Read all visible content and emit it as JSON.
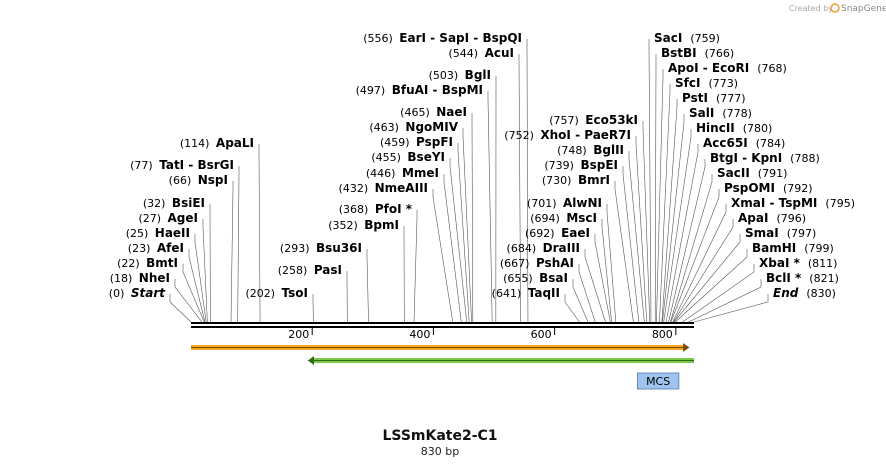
{
  "credit": {
    "text": "Created by",
    "brand": "SnapGene"
  },
  "plasmid": {
    "name": "LSSmKate2-C1",
    "length_label": "830 bp",
    "length": 830
  },
  "axis": {
    "ticks": [
      {
        "value": 200,
        "label": "200"
      },
      {
        "value": 400,
        "label": "400"
      },
      {
        "value": 600,
        "label": "600"
      },
      {
        "value": 800,
        "label": "800"
      }
    ]
  },
  "features": {
    "orange": {
      "start": 0,
      "end": 822,
      "color": "#f5a623",
      "direction": "forward"
    },
    "green": {
      "start": 193,
      "end": 830,
      "color": "#7cc84a",
      "direction": "reverse"
    },
    "mcs": {
      "label": "MCS",
      "start": 740,
      "end": 805,
      "color": "#9fc4f0"
    }
  },
  "left_labels": [
    {
      "pos": "(0)",
      "names": [
        "Start"
      ],
      "site": 0,
      "italic": true
    },
    {
      "pos": "(18)",
      "names": [
        "NheI"
      ],
      "site": 18
    },
    {
      "pos": "(22)",
      "names": [
        "BmtI"
      ],
      "site": 22
    },
    {
      "pos": "(23)",
      "names": [
        "AfeI"
      ],
      "site": 23
    },
    {
      "pos": "(25)",
      "names": [
        "HaeII"
      ],
      "site": 25
    },
    {
      "pos": "(27)",
      "names": [
        "AgeI"
      ],
      "site": 27
    },
    {
      "pos": "(32)",
      "names": [
        "BsiEI"
      ],
      "site": 32
    },
    {
      "pos": "(66)",
      "names": [
        "NspI"
      ],
      "site": 66
    },
    {
      "pos": "(77)",
      "names": [
        "TatI",
        "BsrGI"
      ],
      "site": 77
    },
    {
      "pos": "(114)",
      "names": [
        "ApaLI"
      ],
      "site": 114
    },
    {
      "pos": "(202)",
      "names": [
        "TsoI"
      ],
      "site": 202
    },
    {
      "pos": "(258)",
      "names": [
        "PasI"
      ],
      "site": 258
    },
    {
      "pos": "(293)",
      "names": [
        "Bsu36I"
      ],
      "site": 293
    },
    {
      "pos": "(352)",
      "names": [
        "BpmI"
      ],
      "site": 352
    },
    {
      "pos": "(368)",
      "names": [
        "PfoI *"
      ],
      "site": 368
    },
    {
      "pos": "(432)",
      "names": [
        "NmeAIII"
      ],
      "site": 432
    },
    {
      "pos": "(446)",
      "names": [
        "MmeI"
      ],
      "site": 446
    },
    {
      "pos": "(455)",
      "names": [
        "BseYI"
      ],
      "site": 455
    },
    {
      "pos": "(459)",
      "names": [
        "PspFI"
      ],
      "site": 459
    },
    {
      "pos": "(463)",
      "names": [
        "NgoMIV"
      ],
      "site": 463
    },
    {
      "pos": "(465)",
      "names": [
        "NaeI"
      ],
      "site": 465
    },
    {
      "pos": "(497)",
      "names": [
        "BfuAI",
        "BspMI"
      ],
      "site": 497
    },
    {
      "pos": "(503)",
      "names": [
        "BglI"
      ],
      "site": 503
    },
    {
      "pos": "(544)",
      "names": [
        "AcuI"
      ],
      "site": 544
    },
    {
      "pos": "(556)",
      "names": [
        "EarI",
        "SapI",
        "BspQI"
      ],
      "site": 556
    },
    {
      "pos": "(641)",
      "names": [
        "TaqII"
      ],
      "site": 641
    },
    {
      "pos": "(655)",
      "names": [
        "BsaI"
      ],
      "site": 655
    },
    {
      "pos": "(667)",
      "names": [
        "PshAI"
      ],
      "site": 667
    },
    {
      "pos": "(684)",
      "names": [
        "DraIII"
      ],
      "site": 684
    },
    {
      "pos": "(692)",
      "names": [
        "EaeI"
      ],
      "site": 692
    },
    {
      "pos": "(694)",
      "names": [
        "MscI"
      ],
      "site": 694
    },
    {
      "pos": "(701)",
      "names": [
        "AlwNI"
      ],
      "site": 701
    },
    {
      "pos": "(730)",
      "names": [
        "BmrI"
      ],
      "site": 730
    },
    {
      "pos": "(739)",
      "names": [
        "BspEI"
      ],
      "site": 739
    },
    {
      "pos": "(748)",
      "names": [
        "BglII"
      ],
      "site": 748
    },
    {
      "pos": "(752)",
      "names": [
        "XhoI",
        "PaeR7I"
      ],
      "site": 752
    },
    {
      "pos": "(757)",
      "names": [
        "Eco53kI"
      ],
      "site": 757
    }
  ],
  "right_labels": [
    {
      "names": [
        "SacI"
      ],
      "pos": "(759)",
      "site": 759
    },
    {
      "names": [
        "BstBI"
      ],
      "pos": "(766)",
      "site": 766
    },
    {
      "names": [
        "ApoI",
        "EcoRI"
      ],
      "pos": "(768)",
      "site": 768
    },
    {
      "names": [
        "SfcI"
      ],
      "pos": "(773)",
      "site": 773
    },
    {
      "names": [
        "PstI"
      ],
      "pos": "(777)",
      "site": 777
    },
    {
      "names": [
        "SalI"
      ],
      "pos": "(778)",
      "site": 778
    },
    {
      "names": [
        "HincII"
      ],
      "pos": "(780)",
      "site": 780
    },
    {
      "names": [
        "Acc65I"
      ],
      "pos": "(784)",
      "site": 784
    },
    {
      "names": [
        "BtgI",
        "KpnI"
      ],
      "pos": "(788)",
      "site": 788
    },
    {
      "names": [
        "SacII"
      ],
      "pos": "(791)",
      "site": 791
    },
    {
      "names": [
        "PspOMI"
      ],
      "pos": "(792)",
      "site": 792
    },
    {
      "names": [
        "XmaI",
        "TspMI"
      ],
      "pos": "(795)",
      "site": 795
    },
    {
      "names": [
        "ApaI"
      ],
      "pos": "(796)",
      "site": 796
    },
    {
      "names": [
        "SmaI"
      ],
      "pos": "(797)",
      "site": 797
    },
    {
      "names": [
        "BamHI"
      ],
      "pos": "(799)",
      "site": 799
    },
    {
      "names": [
        "XbaI *"
      ],
      "pos": "(811)",
      "site": 811
    },
    {
      "names": [
        "BclI *"
      ],
      "pos": "(821)",
      "site": 821
    },
    {
      "names": [
        "End"
      ],
      "pos": "(830)",
      "site": 830,
      "italic": true
    }
  ]
}
